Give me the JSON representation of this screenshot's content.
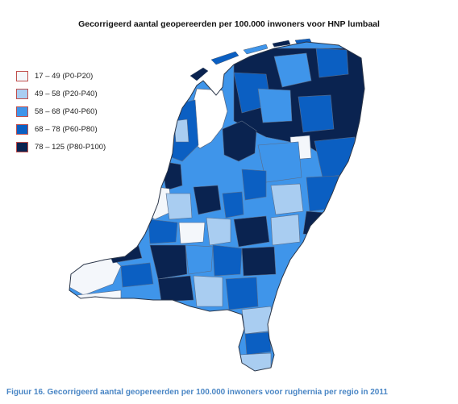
{
  "title": "Gecorrigeerd aantal geopereerden per 100.000 inwoners voor HNP lumbaal",
  "legend": {
    "items": [
      {
        "label": "17 – 49 (P0-P20)",
        "color": "#f4f7fb"
      },
      {
        "label": "49 – 58 (P20-P40)",
        "color": "#a9cdf1"
      },
      {
        "label": "58 – 68 (P40-P60)",
        "color": "#3f95ea"
      },
      {
        "label": "68 – 78 (P60-P80)",
        "color": "#0b5fc2"
      },
      {
        "label": "78 – 125 (P80-P100)",
        "color": "#0a2350"
      }
    ]
  },
  "caption": "Figuur 16.  Gecorrigeerd aantal geopereerden per 100.000 inwoners voor rughernia per regio in 2011"
}
